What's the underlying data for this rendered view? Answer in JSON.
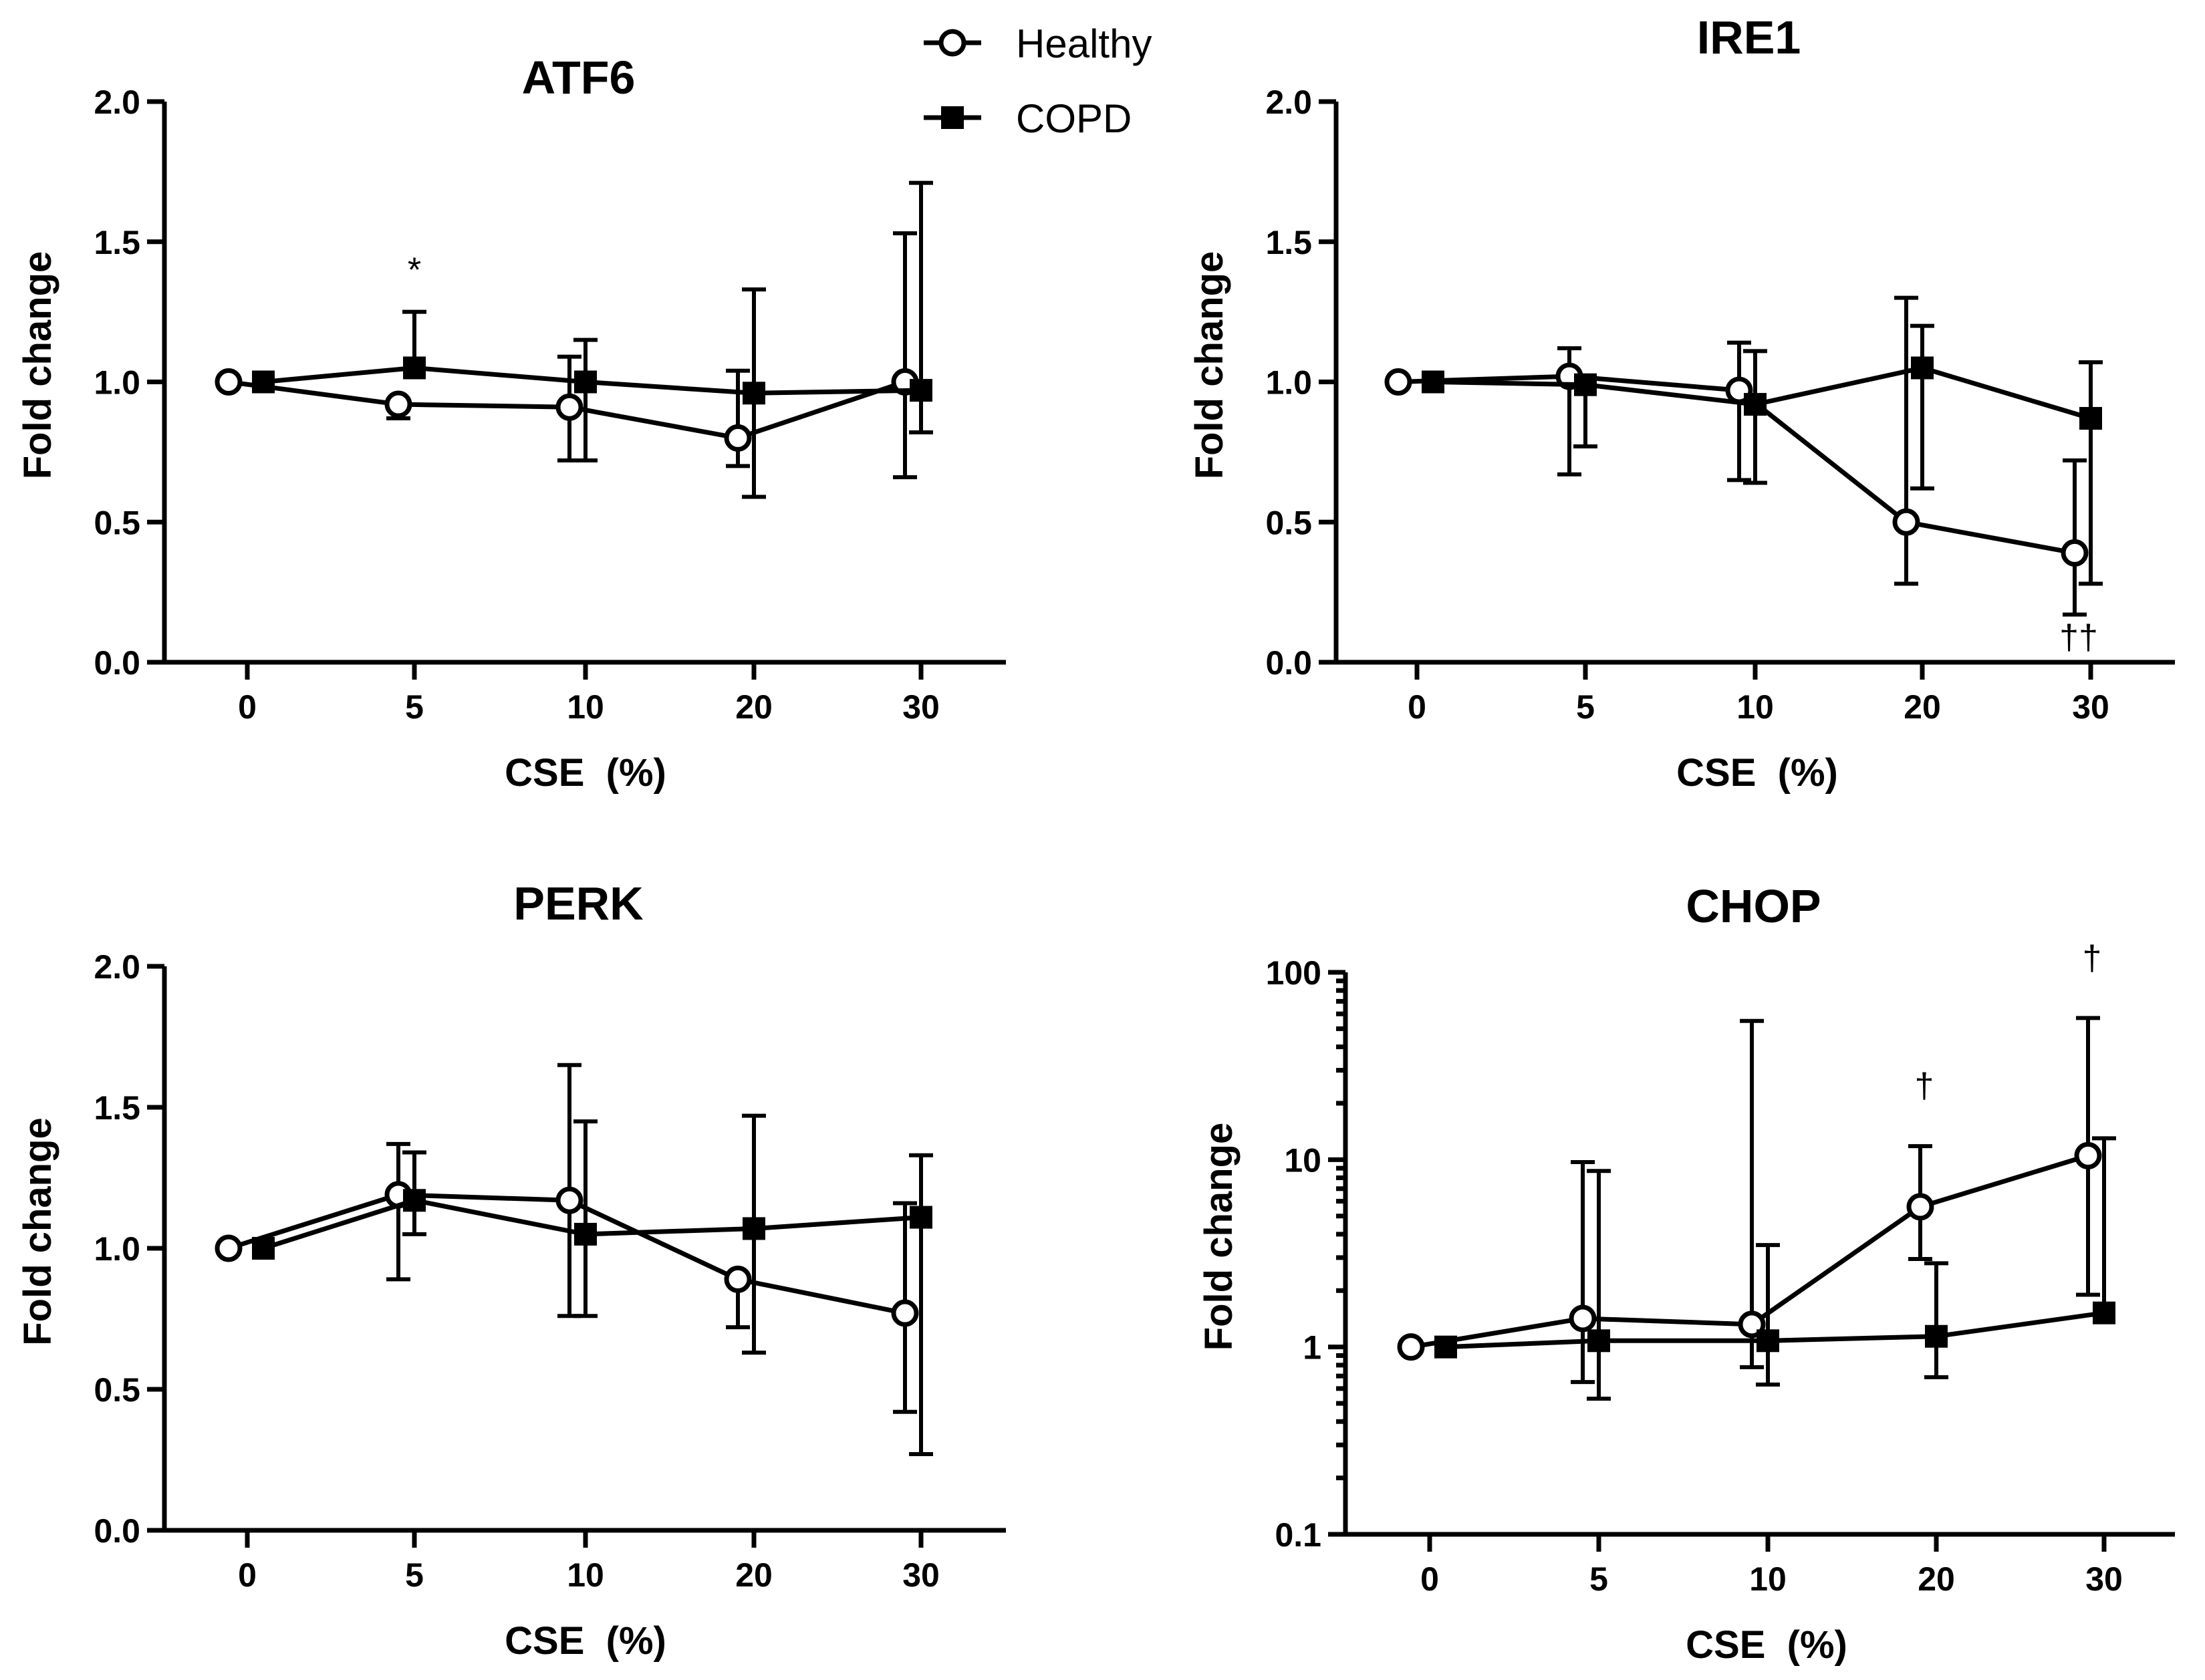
{
  "legend": [
    {
      "name": "Healthy",
      "marker": "open-circle"
    },
    {
      "name": "COPD",
      "marker": "filled-square"
    }
  ],
  "colors": {
    "ink": "#000000",
    "background": "#ffffff",
    "open_marker_fill": "#ffffff"
  },
  "chart_data": [
    {
      "id": "atf6",
      "type": "line",
      "title": "ATF6",
      "xlabel": "CSE  (%)",
      "ylabel": "Fold change",
      "yscale": "linear",
      "ylim": [
        0,
        2
      ],
      "yticks": [
        0,
        0.5,
        1,
        1.5,
        2
      ],
      "ytick_labels": [
        "0.0",
        "0.5",
        "1.0",
        "1.5",
        "2.0"
      ],
      "categories": [
        "0",
        "5",
        "10",
        "20",
        "30"
      ],
      "series": [
        {
          "name": "Healthy",
          "values": [
            1.0,
            0.92,
            0.91,
            0.8,
            1.0
          ],
          "err_low": [
            1.0,
            0.87,
            0.72,
            0.7,
            0.66
          ],
          "err_high": [
            1.0,
            0.92,
            1.09,
            1.04,
            1.53
          ]
        },
        {
          "name": "COPD",
          "values": [
            1.0,
            1.05,
            1.0,
            0.96,
            0.97
          ],
          "err_low": [
            1.0,
            1.05,
            0.72,
            0.59,
            0.82
          ],
          "err_high": [
            1.0,
            1.25,
            1.15,
            1.33,
            1.71
          ]
        }
      ],
      "annotations": [
        {
          "text": "*",
          "category": "5",
          "y": 1.4
        }
      ]
    },
    {
      "id": "ire1",
      "type": "line",
      "title": "IRE1",
      "xlabel": "CSE  (%)",
      "ylabel": "Fold change",
      "yscale": "linear",
      "ylim": [
        0,
        2
      ],
      "yticks": [
        0,
        0.5,
        1,
        1.5,
        2
      ],
      "ytick_labels": [
        "0.0",
        "0.5",
        "1.0",
        "1.5",
        "2.0"
      ],
      "categories": [
        "0",
        "5",
        "10",
        "20",
        "30"
      ],
      "series": [
        {
          "name": "Healthy",
          "values": [
            1.0,
            1.02,
            0.97,
            0.5,
            0.39
          ],
          "err_low": [
            1.0,
            0.67,
            0.65,
            0.28,
            0.17
          ],
          "err_high": [
            1.0,
            1.12,
            1.14,
            1.3,
            0.72
          ]
        },
        {
          "name": "COPD",
          "values": [
            1.0,
            0.99,
            0.92,
            1.05,
            0.87
          ],
          "err_low": [
            1.0,
            0.77,
            0.64,
            0.62,
            0.28
          ],
          "err_high": [
            1.0,
            0.99,
            1.11,
            1.2,
            1.07
          ]
        }
      ],
      "annotations": [
        {
          "text": "††",
          "category": "30",
          "y": 0.09
        }
      ]
    },
    {
      "id": "perk",
      "type": "line",
      "title": "PERK",
      "xlabel": "CSE  (%)",
      "ylabel": "Fold change",
      "yscale": "linear",
      "ylim": [
        0,
        2
      ],
      "yticks": [
        0,
        0.5,
        1,
        1.5,
        2
      ],
      "ytick_labels": [
        "0.0",
        "0.5",
        "1.0",
        "1.5",
        "2.0"
      ],
      "categories": [
        "0",
        "5",
        "10",
        "20",
        "30"
      ],
      "series": [
        {
          "name": "Healthy",
          "values": [
            1.0,
            1.19,
            1.17,
            0.89,
            0.77
          ],
          "err_low": [
            1.0,
            0.89,
            0.76,
            0.72,
            0.42
          ],
          "err_high": [
            1.0,
            1.37,
            1.65,
            0.89,
            1.16
          ]
        },
        {
          "name": "COPD",
          "values": [
            1.0,
            1.17,
            1.05,
            1.07,
            1.11
          ],
          "err_low": [
            1.0,
            1.05,
            0.76,
            0.63,
            0.27
          ],
          "err_high": [
            1.0,
            1.34,
            1.45,
            1.47,
            1.33
          ]
        }
      ],
      "annotations": []
    },
    {
      "id": "chop",
      "type": "line",
      "title": "CHOP",
      "xlabel": "CSE  (%)",
      "ylabel": "Fold change",
      "yscale": "log",
      "ylim": [
        0.1,
        100
      ],
      "yticks": [
        0.1,
        1,
        10,
        100
      ],
      "ytick_labels": [
        "0.1",
        "1",
        "10",
        "100"
      ],
      "categories": [
        "0",
        "5",
        "10",
        "20",
        "30"
      ],
      "series": [
        {
          "name": "Healthy",
          "values": [
            1.0,
            1.42,
            1.32,
            5.6,
            10.5
          ],
          "err_low": [
            1.0,
            0.65,
            0.78,
            2.95,
            1.9
          ],
          "err_high": [
            1.0,
            9.7,
            55,
            11.8,
            57
          ]
        },
        {
          "name": "COPD",
          "values": [
            1.0,
            1.08,
            1.08,
            1.14,
            1.52
          ],
          "err_low": [
            1.0,
            0.53,
            0.63,
            0.69,
            1.52
          ],
          "err_high": [
            1.0,
            8.7,
            3.5,
            2.8,
            13
          ]
        }
      ],
      "annotations": [
        {
          "text": "†",
          "category": "20",
          "y": 25
        },
        {
          "text": "†",
          "category": "30",
          "y": 120
        }
      ]
    }
  ]
}
